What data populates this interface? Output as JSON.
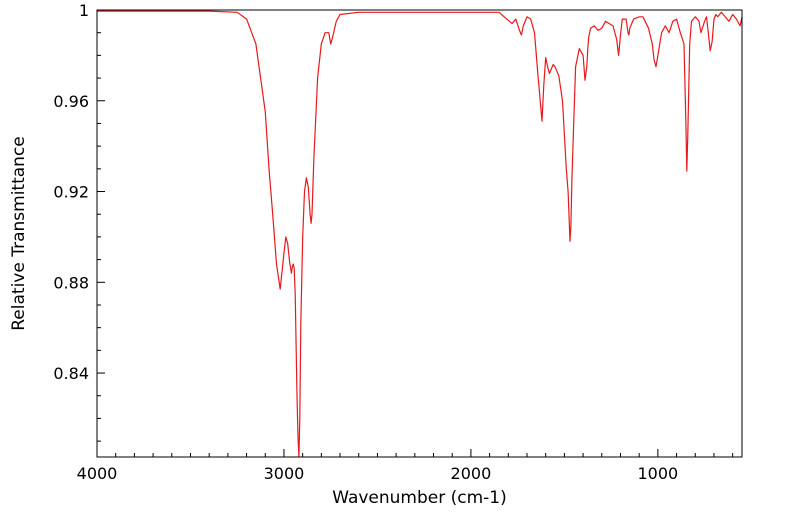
{
  "chart_data": {
    "type": "line",
    "xlabel": "Wavenumber (cm-1)",
    "ylabel": "Relative Transmittance",
    "xlim": [
      4000,
      550
    ],
    "x_reversed": true,
    "ylim": [
      0.803,
      1.0
    ],
    "x_ticks": [
      4000,
      3000,
      2000,
      1000
    ],
    "x_tick_labels": [
      "4000",
      "3000",
      "2000",
      "1000"
    ],
    "y_ticks": [
      0.84,
      0.88,
      0.92,
      0.96,
      1.0
    ],
    "y_tick_labels": [
      "0.84",
      "0.88",
      "0.92",
      "0.96",
      "1"
    ],
    "grid": false,
    "series": [
      {
        "color": "#e8191d",
        "x": [
          4000,
          3800,
          3600,
          3400,
          3250,
          3200,
          3150,
          3100,
          3080,
          3060,
          3040,
          3020,
          3010,
          3000,
          2990,
          2980,
          2970,
          2960,
          2955,
          2950,
          2945,
          2940,
          2930,
          2925,
          2920,
          2915,
          2910,
          2900,
          2890,
          2880,
          2870,
          2860,
          2855,
          2850,
          2840,
          2820,
          2800,
          2780,
          2760,
          2750,
          2740,
          2720,
          2700,
          2600,
          2400,
          2200,
          2000,
          1850,
          1780,
          1760,
          1740,
          1730,
          1720,
          1700,
          1680,
          1660,
          1640,
          1620,
          1610,
          1600,
          1590,
          1580,
          1570,
          1560,
          1550,
          1530,
          1510,
          1490,
          1480,
          1470,
          1465,
          1460,
          1450,
          1440,
          1420,
          1400,
          1390,
          1380,
          1375,
          1370,
          1360,
          1340,
          1320,
          1300,
          1280,
          1260,
          1240,
          1220,
          1210,
          1200,
          1190,
          1170,
          1160,
          1155,
          1150,
          1130,
          1100,
          1080,
          1050,
          1030,
          1020,
          1010,
          1000,
          980,
          960,
          940,
          920,
          900,
          880,
          860,
          850,
          845,
          840,
          830,
          820,
          800,
          780,
          770,
          750,
          740,
          730,
          720,
          710,
          700,
          690,
          680,
          660,
          640,
          620,
          600,
          580,
          560,
          550
        ],
        "values": [
          0.9995,
          0.9995,
          0.9995,
          0.9995,
          0.999,
          0.996,
          0.985,
          0.955,
          0.93,
          0.91,
          0.888,
          0.877,
          0.885,
          0.893,
          0.9,
          0.897,
          0.889,
          0.884,
          0.887,
          0.888,
          0.886,
          0.875,
          0.83,
          0.812,
          0.803,
          0.82,
          0.862,
          0.9,
          0.92,
          0.926,
          0.922,
          0.91,
          0.906,
          0.91,
          0.935,
          0.97,
          0.985,
          0.99,
          0.99,
          0.985,
          0.988,
          0.995,
          0.998,
          0.999,
          0.999,
          0.999,
          0.999,
          0.999,
          0.994,
          0.996,
          0.991,
          0.989,
          0.993,
          0.997,
          0.996,
          0.99,
          0.97,
          0.951,
          0.967,
          0.979,
          0.975,
          0.972,
          0.974,
          0.976,
          0.975,
          0.971,
          0.96,
          0.93,
          0.92,
          0.898,
          0.905,
          0.925,
          0.95,
          0.975,
          0.983,
          0.98,
          0.969,
          0.975,
          0.983,
          0.988,
          0.992,
          0.993,
          0.991,
          0.992,
          0.995,
          0.994,
          0.993,
          0.987,
          0.98,
          0.989,
          0.996,
          0.996,
          0.99,
          0.989,
          0.992,
          0.996,
          0.997,
          0.997,
          0.992,
          0.985,
          0.978,
          0.975,
          0.98,
          0.99,
          0.993,
          0.99,
          0.995,
          0.996,
          0.99,
          0.985,
          0.95,
          0.929,
          0.945,
          0.985,
          0.995,
          0.997,
          0.995,
          0.99,
          0.995,
          0.997,
          0.99,
          0.982,
          0.986,
          0.996,
          0.998,
          0.997,
          0.999,
          0.997,
          0.995,
          0.998,
          0.996,
          0.993,
          0.997
        ]
      }
    ]
  }
}
